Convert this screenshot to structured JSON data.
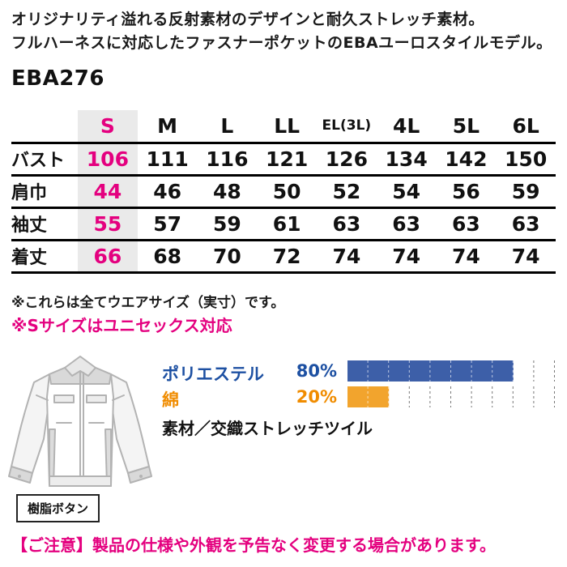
{
  "header": {
    "line1": "オリジナリティ溢れる反射素材のデザインと耐久ストレッチ素材。",
    "line2": "フルハーネスに対応したファスナーポケットのEBAユーロスタイルモデル。",
    "product_code": "EBA276"
  },
  "size_table": {
    "columns": [
      "S",
      "M",
      "L",
      "LL",
      "EL(3L)",
      "4L",
      "5L",
      "6L"
    ],
    "rows": [
      {
        "label": "バスト",
        "values": [
          106,
          111,
          116,
          121,
          126,
          134,
          142,
          150
        ]
      },
      {
        "label": "肩巾",
        "values": [
          44,
          46,
          48,
          50,
          52,
          54,
          56,
          59
        ]
      },
      {
        "label": "袖丈",
        "values": [
          55,
          57,
          59,
          61,
          63,
          63,
          63,
          63
        ]
      },
      {
        "label": "着丈",
        "values": [
          66,
          68,
          70,
          72,
          74,
          74,
          74,
          74
        ]
      }
    ],
    "highlight_column": "S",
    "highlight_color": "#e4007f",
    "highlight_background": "#eaeaea"
  },
  "notes": {
    "note1": "※これらは全てウエアサイズ（実寸）です。",
    "note2": "※Sサイズはユニセックス対応"
  },
  "materials": {
    "items": [
      {
        "name": "ポリエステル",
        "percent": "80%",
        "value": 80,
        "color": "#3d5fa8",
        "text_color": "#1d50a2"
      },
      {
        "name": "綿",
        "percent": "20%",
        "value": 20,
        "color": "#f2a42d",
        "text_color": "#f08c00"
      }
    ],
    "label": "素材／交織ストレッチツイル"
  },
  "chart_data": {
    "type": "bar",
    "categories": [
      "ポリエステル",
      "綿"
    ],
    "values": [
      80,
      20
    ],
    "title": "素材／交織ストレッチツイル",
    "xlim": [
      0,
      100
    ],
    "grid": "dashed vertical lines every 10%"
  },
  "jacket": {
    "button_label": "樹脂ボタン"
  },
  "footer": {
    "notice": "【ご注意】製品の仕様や外観を予告なく変更する場合があります。"
  }
}
